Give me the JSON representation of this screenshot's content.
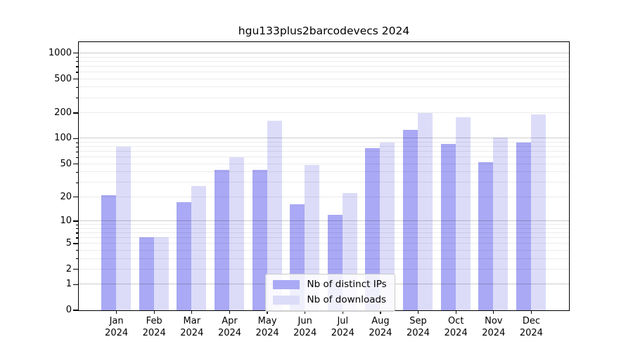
{
  "chart_data": {
    "type": "bar",
    "title": "hgu133plus2barcodevecs 2024",
    "categories": [
      "Jan 2024",
      "Feb 2024",
      "Mar 2024",
      "Apr 2024",
      "May 2024",
      "Jun 2024",
      "Jul 2024",
      "Aug 2024",
      "Sep 2024",
      "Oct 2024",
      "Nov 2024",
      "Dec 2024"
    ],
    "series": [
      {
        "name": "Nb of distinct IPs",
        "color": "#a9a9f5",
        "values": [
          21,
          6,
          17,
          42,
          42,
          16,
          12,
          76,
          125,
          86,
          52,
          89
        ]
      },
      {
        "name": "Nb of downloads",
        "color": "#dcdcf9",
        "values": [
          80,
          6,
          27,
          60,
          160,
          48,
          22,
          90,
          197,
          178,
          101,
          190
        ]
      }
    ],
    "yscale": "log1p",
    "yticks": [
      0,
      1,
      2,
      5,
      10,
      20,
      50,
      100,
      200,
      500,
      1000
    ],
    "ylim": [
      0,
      1350
    ],
    "grid": true,
    "grid_major_ticks": [
      1,
      10,
      100,
      1000
    ],
    "grid_major_color": "#c9c9c9",
    "grid_minor_color": "#ececec",
    "xlabel": "",
    "ylabel": "",
    "legend_position": "lower center",
    "legend_border_color": "#cccccc",
    "legend_background": "#ffffff"
  }
}
